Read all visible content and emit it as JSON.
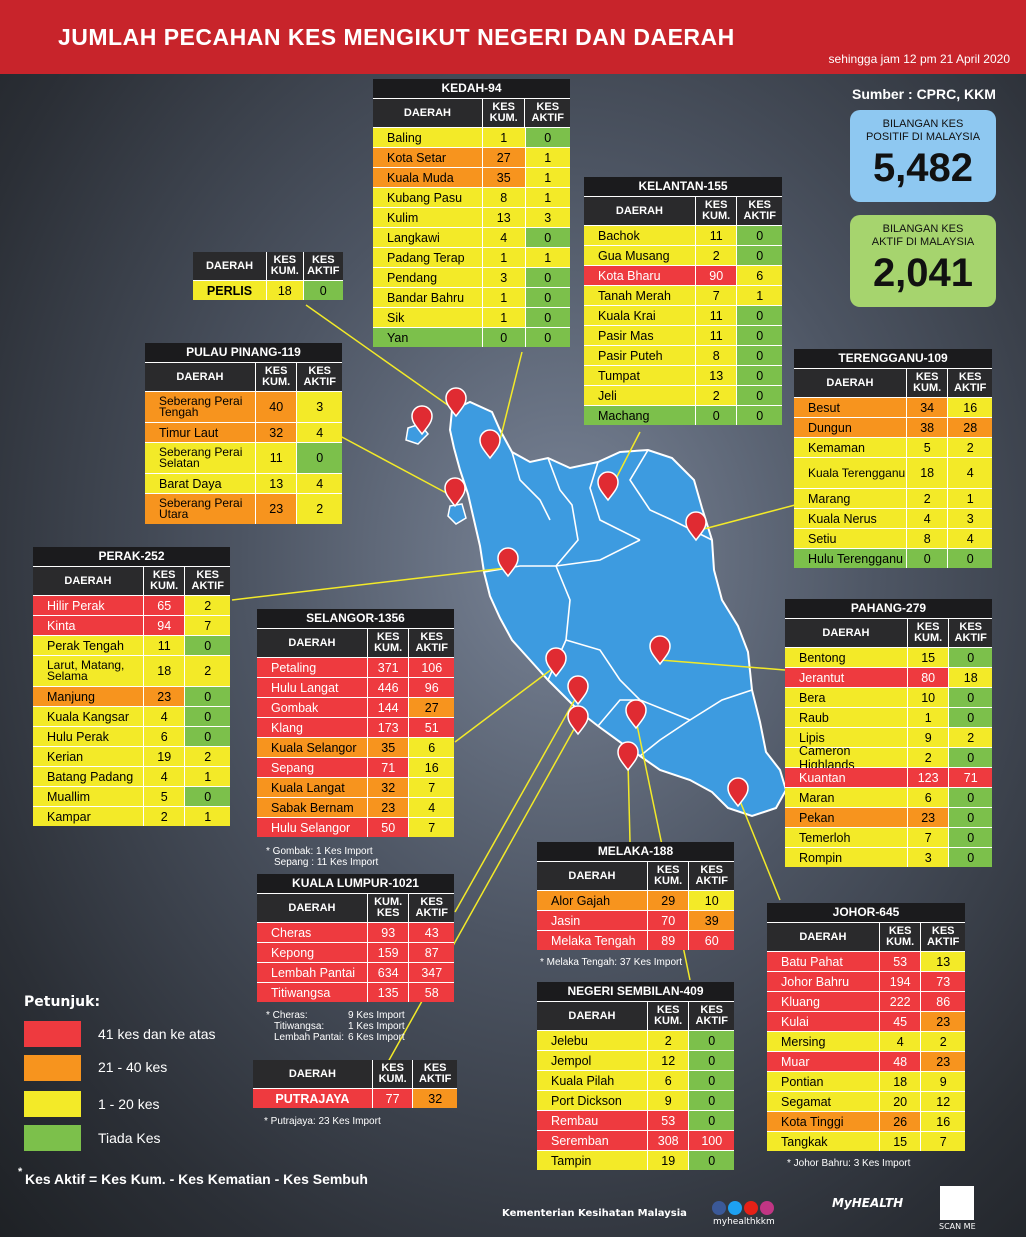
{
  "header": {
    "title": "JUMLAH PECAHAN KES MENGIKUT NEGERI DAN DAERAH",
    "subtitle": "sehingga jam 12 pm 21 April 2020",
    "source": "Sumber : CPRC, KKM"
  },
  "stats": {
    "positive": {
      "label1": "BILANGAN KES",
      "label2": "POSITIF DI MALAYSIA",
      "value": "5,482"
    },
    "active": {
      "label1": "BILANGAN KES",
      "label2": "AKTIF DI MALAYSIA",
      "value": "2,041"
    }
  },
  "headers": {
    "daerah": "DAERAH",
    "kum1": "KES",
    "kum2": "KUM.",
    "akt1": "KES",
    "akt2": "AKTIF",
    "kl_kum1": "KUM.",
    "kl_kum2": "KES"
  },
  "colors": {
    "red": "#ee3a3f",
    "orange": "#f7941e",
    "yellow": "#f3ea28",
    "green": "#7cc04b",
    "banner": "#c8242b",
    "map": "#3d9be0"
  },
  "states": {
    "kedah": {
      "title": "KEDAH-94",
      "rows": [
        {
          "n": "Baling",
          "k": "1",
          "a": "0",
          "c": "yel",
          "ac": "grn"
        },
        {
          "n": "Kota Setar",
          "k": "27",
          "a": "1",
          "c": "ora",
          "ac": "yel"
        },
        {
          "n": "Kuala Muda",
          "k": "35",
          "a": "1",
          "c": "ora",
          "ac": "yel"
        },
        {
          "n": "Kubang Pasu",
          "k": "8",
          "a": "1",
          "c": "yel",
          "ac": "yel"
        },
        {
          "n": "Kulim",
          "k": "13",
          "a": "3",
          "c": "yel",
          "ac": "yel"
        },
        {
          "n": "Langkawi",
          "k": "4",
          "a": "0",
          "c": "yel",
          "ac": "grn"
        },
        {
          "n": "Padang Terap",
          "k": "1",
          "a": "1",
          "c": "yel",
          "ac": "yel"
        },
        {
          "n": "Pendang",
          "k": "3",
          "a": "0",
          "c": "yel",
          "ac": "grn"
        },
        {
          "n": "Bandar Bahru",
          "k": "1",
          "a": "0",
          "c": "yel",
          "ac": "grn"
        },
        {
          "n": "Sik",
          "k": "1",
          "a": "0",
          "c": "yel",
          "ac": "grn"
        },
        {
          "n": "Yan",
          "k": "0",
          "a": "0",
          "c": "grn",
          "ac": "grn"
        }
      ]
    },
    "kelantan": {
      "title": "KELANTAN-155",
      "rows": [
        {
          "n": "Bachok",
          "k": "11",
          "a": "0",
          "c": "yel",
          "ac": "grn"
        },
        {
          "n": "Gua Musang",
          "k": "2",
          "a": "0",
          "c": "yel",
          "ac": "grn"
        },
        {
          "n": "Kota Bharu",
          "k": "90",
          "a": "6",
          "c": "red",
          "ac": "yel"
        },
        {
          "n": "Tanah Merah",
          "k": "7",
          "a": "1",
          "c": "yel",
          "ac": "yel"
        },
        {
          "n": "Kuala Krai",
          "k": "11",
          "a": "0",
          "c": "yel",
          "ac": "grn"
        },
        {
          "n": "Pasir Mas",
          "k": "11",
          "a": "0",
          "c": "yel",
          "ac": "grn"
        },
        {
          "n": "Pasir Puteh",
          "k": "8",
          "a": "0",
          "c": "yel",
          "ac": "grn"
        },
        {
          "n": "Tumpat",
          "k": "13",
          "a": "0",
          "c": "yel",
          "ac": "grn"
        },
        {
          "n": "Jeli",
          "k": "2",
          "a": "0",
          "c": "yel",
          "ac": "grn"
        },
        {
          "n": "Machang",
          "k": "0",
          "a": "0",
          "c": "grn",
          "ac": "grn"
        }
      ]
    },
    "perlis": {
      "rows": [
        {
          "n": "PERLIS",
          "k": "18",
          "a": "0",
          "c": "yel",
          "ac": "grn"
        }
      ]
    },
    "penang": {
      "title": "PULAU PINANG-119",
      "rows": [
        {
          "n": "Seberang Perai Tengah",
          "k": "40",
          "a": "3",
          "c": "ora",
          "ac": "yel",
          "tall": true
        },
        {
          "n": "Timur Laut",
          "k": "32",
          "a": "4",
          "c": "ora",
          "ac": "yel"
        },
        {
          "n": "Seberang Perai Selatan",
          "k": "11",
          "a": "0",
          "c": "yel",
          "ac": "grn",
          "tall": true
        },
        {
          "n": "Barat Daya",
          "k": "13",
          "a": "4",
          "c": "yel",
          "ac": "yel"
        },
        {
          "n": "Seberang Perai Utara",
          "k": "23",
          "a": "2",
          "c": "ora",
          "ac": "yel",
          "tall": true
        }
      ]
    },
    "terengganu": {
      "title": "TERENGGANU-109",
      "rows": [
        {
          "n": "Besut",
          "k": "34",
          "a": "16",
          "c": "ora",
          "ac": "yel"
        },
        {
          "n": "Dungun",
          "k": "38",
          "a": "28",
          "c": "ora",
          "ac": "ora"
        },
        {
          "n": "Kemaman",
          "k": "5",
          "a": "2",
          "c": "yel",
          "ac": "yel"
        },
        {
          "n": "Kuala Terengganu",
          "k": "18",
          "a": "4",
          "c": "yel",
          "ac": "yel",
          "tall": true
        },
        {
          "n": "Marang",
          "k": "2",
          "a": "1",
          "c": "yel",
          "ac": "yel"
        },
        {
          "n": "Kuala Nerus",
          "k": "4",
          "a": "3",
          "c": "yel",
          "ac": "yel"
        },
        {
          "n": "Setiu",
          "k": "8",
          "a": "4",
          "c": "yel",
          "ac": "yel"
        },
        {
          "n": "Hulu Terengganu",
          "k": "0",
          "a": "0",
          "c": "grn",
          "ac": "grn"
        }
      ]
    },
    "perak": {
      "title": "PERAK-252",
      "rows": [
        {
          "n": "Hilir Perak",
          "k": "65",
          "a": "2",
          "c": "red",
          "ac": "yel"
        },
        {
          "n": "Kinta",
          "k": "94",
          "a": "7",
          "c": "red",
          "ac": "yel"
        },
        {
          "n": "Perak Tengah",
          "k": "11",
          "a": "0",
          "c": "yel",
          "ac": "grn"
        },
        {
          "n": "Larut, Matang, Selama",
          "k": "18",
          "a": "2",
          "c": "yel",
          "ac": "yel",
          "tall": true
        },
        {
          "n": "Manjung",
          "k": "23",
          "a": "0",
          "c": "ora",
          "ac": "grn"
        },
        {
          "n": "Kuala Kangsar",
          "k": "4",
          "a": "0",
          "c": "yel",
          "ac": "grn"
        },
        {
          "n": "Hulu Perak",
          "k": "6",
          "a": "0",
          "c": "yel",
          "ac": "grn"
        },
        {
          "n": "Kerian",
          "k": "19",
          "a": "2",
          "c": "yel",
          "ac": "yel"
        },
        {
          "n": "Batang Padang",
          "k": "4",
          "a": "1",
          "c": "yel",
          "ac": "yel"
        },
        {
          "n": "Muallim",
          "k": "5",
          "a": "0",
          "c": "yel",
          "ac": "grn"
        },
        {
          "n": "Kampar",
          "k": "2",
          "a": "1",
          "c": "yel",
          "ac": "yel"
        }
      ]
    },
    "selangor": {
      "title": "SELANGOR-1356",
      "rows": [
        {
          "n": "Petaling",
          "k": "371",
          "a": "106",
          "c": "red",
          "ac": "red"
        },
        {
          "n": "Hulu Langat",
          "k": "446",
          "a": "96",
          "c": "red",
          "ac": "red"
        },
        {
          "n": "Gombak",
          "k": "144",
          "a": "27",
          "c": "red",
          "ac": "ora"
        },
        {
          "n": "Klang",
          "k": "173",
          "a": "51",
          "c": "red",
          "ac": "red"
        },
        {
          "n": "Kuala Selangor",
          "k": "35",
          "a": "6",
          "c": "ora",
          "ac": "yel"
        },
        {
          "n": "Sepang",
          "k": "71",
          "a": "16",
          "c": "red",
          "ac": "yel"
        },
        {
          "n": "Kuala Langat",
          "k": "32",
          "a": "7",
          "c": "ora",
          "ac": "yel"
        },
        {
          "n": "Sabak Bernam",
          "k": "23",
          "a": "4",
          "c": "ora",
          "ac": "yel"
        },
        {
          "n": "Hulu Selangor",
          "k": "50",
          "a": "7",
          "c": "red",
          "ac": "yel"
        }
      ],
      "note1": "* Gombak: 1 Kes Import",
      "note2": "Sepang : 11 Kes Import"
    },
    "pahang": {
      "title": "PAHANG-279",
      "rows": [
        {
          "n": "Bentong",
          "k": "15",
          "a": "0",
          "c": "yel",
          "ac": "grn"
        },
        {
          "n": "Jerantut",
          "k": "80",
          "a": "18",
          "c": "red",
          "ac": "yel"
        },
        {
          "n": "Bera",
          "k": "10",
          "a": "0",
          "c": "yel",
          "ac": "grn"
        },
        {
          "n": "Raub",
          "k": "1",
          "a": "0",
          "c": "yel",
          "ac": "grn"
        },
        {
          "n": "Lipis",
          "k": "9",
          "a": "2",
          "c": "yel",
          "ac": "yel"
        },
        {
          "n": "Cameron Highlands",
          "k": "2",
          "a": "0",
          "c": "yel",
          "ac": "grn"
        },
        {
          "n": "Kuantan",
          "k": "123",
          "a": "71",
          "c": "red",
          "ac": "red"
        },
        {
          "n": "Maran",
          "k": "6",
          "a": "0",
          "c": "yel",
          "ac": "grn"
        },
        {
          "n": "Pekan",
          "k": "23",
          "a": "0",
          "c": "ora",
          "ac": "grn"
        },
        {
          "n": "Temerloh",
          "k": "7",
          "a": "0",
          "c": "yel",
          "ac": "grn"
        },
        {
          "n": "Rompin",
          "k": "3",
          "a": "0",
          "c": "yel",
          "ac": "grn"
        }
      ]
    },
    "kl": {
      "title": "KUALA LUMPUR-1021",
      "rows": [
        {
          "n": "Cheras",
          "k": "93",
          "a": "43",
          "c": "red",
          "ac": "red"
        },
        {
          "n": "Kepong",
          "k": "159",
          "a": "87",
          "c": "red",
          "ac": "red"
        },
        {
          "n": "Lembah Pantai",
          "k": "634",
          "a": "347",
          "c": "red",
          "ac": "red"
        },
        {
          "n": "Titiwangsa",
          "k": "135",
          "a": "58",
          "c": "red",
          "ac": "red"
        }
      ],
      "note_names": [
        "* Cheras:",
        "Titiwangsa:",
        "Lembah Pantai:"
      ],
      "note_vals": [
        "9 Kes Import",
        "1 Kes Import",
        "6 Kes Import"
      ]
    },
    "melaka": {
      "title": "MELAKA-188",
      "rows": [
        {
          "n": "Alor Gajah",
          "k": "29",
          "a": "10",
          "c": "ora",
          "ac": "yel"
        },
        {
          "n": "Jasin",
          "k": "70",
          "a": "39",
          "c": "red",
          "ac": "ora"
        },
        {
          "n": "Melaka Tengah",
          "k": "89",
          "a": "60",
          "c": "red",
          "ac": "red"
        }
      ],
      "note": "* Melaka Tengah: 37 Kes Import"
    },
    "johor": {
      "title": "JOHOR-645",
      "rows": [
        {
          "n": "Batu Pahat",
          "k": "53",
          "a": "13",
          "c": "red",
          "ac": "yel"
        },
        {
          "n": "Johor Bahru",
          "k": "194",
          "a": "73",
          "c": "red",
          "ac": "red"
        },
        {
          "n": "Kluang",
          "k": "222",
          "a": "86",
          "c": "red",
          "ac": "red"
        },
        {
          "n": "Kulai",
          "k": "45",
          "a": "23",
          "c": "red",
          "ac": "ora"
        },
        {
          "n": "Mersing",
          "k": "4",
          "a": "2",
          "c": "yel",
          "ac": "yel"
        },
        {
          "n": "Muar",
          "k": "48",
          "a": "23",
          "c": "red",
          "ac": "ora"
        },
        {
          "n": "Pontian",
          "k": "18",
          "a": "9",
          "c": "yel",
          "ac": "yel"
        },
        {
          "n": "Segamat",
          "k": "20",
          "a": "12",
          "c": "yel",
          "ac": "yel"
        },
        {
          "n": "Kota Tinggi",
          "k": "26",
          "a": "16",
          "c": "ora",
          "ac": "yel"
        },
        {
          "n": "Tangkak",
          "k": "15",
          "a": "7",
          "c": "yel",
          "ac": "yel"
        }
      ],
      "note": "* Johor Bahru: 3 Kes Import"
    },
    "nsembilan": {
      "title": "NEGERI SEMBILAN-409",
      "rows": [
        {
          "n": "Jelebu",
          "k": "2",
          "a": "0",
          "c": "yel",
          "ac": "grn"
        },
        {
          "n": "Jempol",
          "k": "12",
          "a": "0",
          "c": "yel",
          "ac": "grn"
        },
        {
          "n": "Kuala Pilah",
          "k": "6",
          "a": "0",
          "c": "yel",
          "ac": "grn"
        },
        {
          "n": "Port Dickson",
          "k": "9",
          "a": "0",
          "c": "yel",
          "ac": "grn"
        },
        {
          "n": "Rembau",
          "k": "53",
          "a": "0",
          "c": "red",
          "ac": "grn"
        },
        {
          "n": "Seremban",
          "k": "308",
          "a": "100",
          "c": "red",
          "ac": "red"
        },
        {
          "n": "Tampin",
          "k": "19",
          "a": "0",
          "c": "yel",
          "ac": "grn"
        }
      ]
    },
    "putrajaya": {
      "rows": [
        {
          "n": "PUTRAJAYA",
          "k": "77",
          "a": "32",
          "c": "red",
          "ac": "ora"
        }
      ],
      "note": "* Putrajaya: 23 Kes Import"
    }
  },
  "legend": {
    "title": "Petunjuk:",
    "items": [
      {
        "label": "41 kes dan ke atas",
        "color": "#ee3a3f"
      },
      {
        "label": "21 - 40 kes",
        "color": "#f7941e"
      },
      {
        "label": "1 - 20 kes",
        "color": "#f3ea28"
      },
      {
        "label": "Tiada Kes",
        "color": "#7cc04b"
      }
    ]
  },
  "footnote": {
    "star": "*",
    "text": "Kes Aktif = Kes Kum. - Kes Kematian - Kes Sembuh"
  },
  "footer": {
    "ministry": "Kementerian Kesihatan Malaysia",
    "handle": "myhealthkkm",
    "logo": "MyHEALTH",
    "scan": "SCAN ME"
  }
}
